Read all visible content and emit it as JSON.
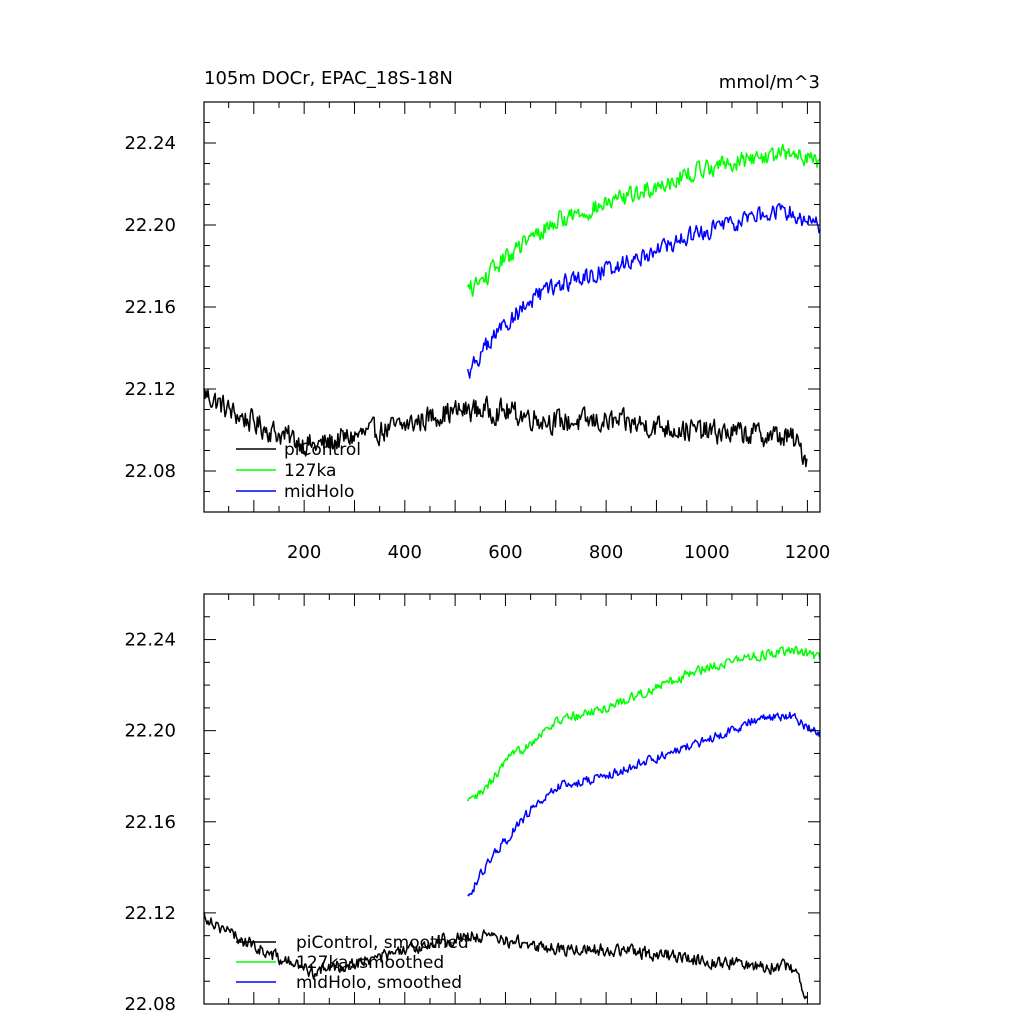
{
  "chart_data": [
    {
      "type": "line",
      "title": "105m DOCr, EPAC_18S-18N",
      "units": "mmol/m^3",
      "xlim": [
        1,
        1225
      ],
      "ylim": [
        22.06,
        22.26
      ],
      "x_ticks": [
        200,
        400,
        600,
        800,
        1000,
        1200
      ],
      "y_ticks": [
        "22.08",
        "22.12",
        "22.16",
        "22.20",
        "22.24"
      ],
      "x_tick_labels": [
        "200",
        "400",
        "600",
        "800",
        "1000",
        "1200"
      ],
      "legend": [
        "piControl",
        "127ka",
        "midHolo"
      ],
      "series": [
        {
          "name": "piControl",
          "color": "#000000",
          "x_start": 1,
          "x_end": 1200,
          "noise": 0.008,
          "trend": [
            [
              1,
              22.118
            ],
            [
              60,
              22.108
            ],
            [
              150,
              22.098
            ],
            [
              220,
              22.092
            ],
            [
              300,
              22.097
            ],
            [
              400,
              22.102
            ],
            [
              470,
              22.108
            ],
            [
              540,
              22.11
            ],
            [
              600,
              22.109
            ],
            [
              700,
              22.104
            ],
            [
              800,
              22.104
            ],
            [
              900,
              22.102
            ],
            [
              1000,
              22.099
            ],
            [
              1100,
              22.098
            ],
            [
              1170,
              22.096
            ],
            [
              1200,
              22.086
            ]
          ]
        },
        {
          "name": "127ka",
          "color": "#00ff00",
          "x_start": 525,
          "x_end": 1225,
          "noise": 0.006,
          "trend": [
            [
              525,
              22.168
            ],
            [
              560,
              22.174
            ],
            [
              600,
              22.184
            ],
            [
              650,
              22.193
            ],
            [
              700,
              22.202
            ],
            [
              800,
              22.21
            ],
            [
              900,
              22.219
            ],
            [
              1000,
              22.228
            ],
            [
              1100,
              22.233
            ],
            [
              1180,
              22.235
            ],
            [
              1225,
              22.231
            ]
          ]
        },
        {
          "name": "midHolo",
          "color": "#0000ff",
          "x_start": 525,
          "x_end": 1225,
          "noise": 0.006,
          "trend": [
            [
              525,
              22.128
            ],
            [
              560,
              22.14
            ],
            [
              600,
              22.152
            ],
            [
              650,
              22.163
            ],
            [
              700,
              22.17
            ],
            [
              800,
              22.178
            ],
            [
              900,
              22.188
            ],
            [
              1000,
              22.197
            ],
            [
              1100,
              22.205
            ],
            [
              1160,
              22.207
            ],
            [
              1225,
              22.2
            ]
          ]
        }
      ]
    },
    {
      "type": "line",
      "title": "",
      "xlim": [
        1,
        1225
      ],
      "ylim": [
        22.08,
        22.26
      ],
      "x_ticks": [
        200,
        400,
        600,
        800,
        1000,
        1200
      ],
      "y_ticks": [
        "22.08",
        "22.12",
        "22.16",
        "22.20",
        "22.24"
      ],
      "legend": [
        "piControl, smoothed",
        "127ka, smoothed",
        "midHolo, smoothed"
      ],
      "series": [
        {
          "name": "piControl, smoothed",
          "color": "#000000",
          "x_start": 1,
          "x_end": 1200,
          "noise": 0.004,
          "trend": [
            [
              1,
              22.119
            ],
            [
              60,
              22.11
            ],
            [
              150,
              22.1
            ],
            [
              220,
              22.094
            ],
            [
              300,
              22.098
            ],
            [
              400,
              22.103
            ],
            [
              470,
              22.108
            ],
            [
              540,
              22.11
            ],
            [
              600,
              22.108
            ],
            [
              700,
              22.104
            ],
            [
              800,
              22.104
            ],
            [
              900,
              22.102
            ],
            [
              1000,
              22.099
            ],
            [
              1100,
              22.097
            ],
            [
              1170,
              22.096
            ],
            [
              1200,
              22.084
            ]
          ]
        },
        {
          "name": "127ka, smoothed",
          "color": "#00ff00",
          "x_start": 525,
          "x_end": 1225,
          "noise": 0.003,
          "trend": [
            [
              525,
              22.168
            ],
            [
              560,
              22.174
            ],
            [
              600,
              22.186
            ],
            [
              650,
              22.195
            ],
            [
              700,
              22.204
            ],
            [
              800,
              22.21
            ],
            [
              900,
              22.219
            ],
            [
              1000,
              22.228
            ],
            [
              1100,
              22.233
            ],
            [
              1180,
              22.235
            ],
            [
              1225,
              22.232
            ]
          ]
        },
        {
          "name": "midHolo, smoothed",
          "color": "#0000ff",
          "x_start": 525,
          "x_end": 1225,
          "noise": 0.003,
          "trend": [
            [
              525,
              22.127
            ],
            [
              560,
              22.14
            ],
            [
              600,
              22.152
            ],
            [
              650,
              22.165
            ],
            [
              700,
              22.175
            ],
            [
              800,
              22.18
            ],
            [
              900,
              22.188
            ],
            [
              1000,
              22.196
            ],
            [
              1100,
              22.205
            ],
            [
              1160,
              22.207
            ],
            [
              1225,
              22.199
            ]
          ]
        }
      ]
    }
  ]
}
